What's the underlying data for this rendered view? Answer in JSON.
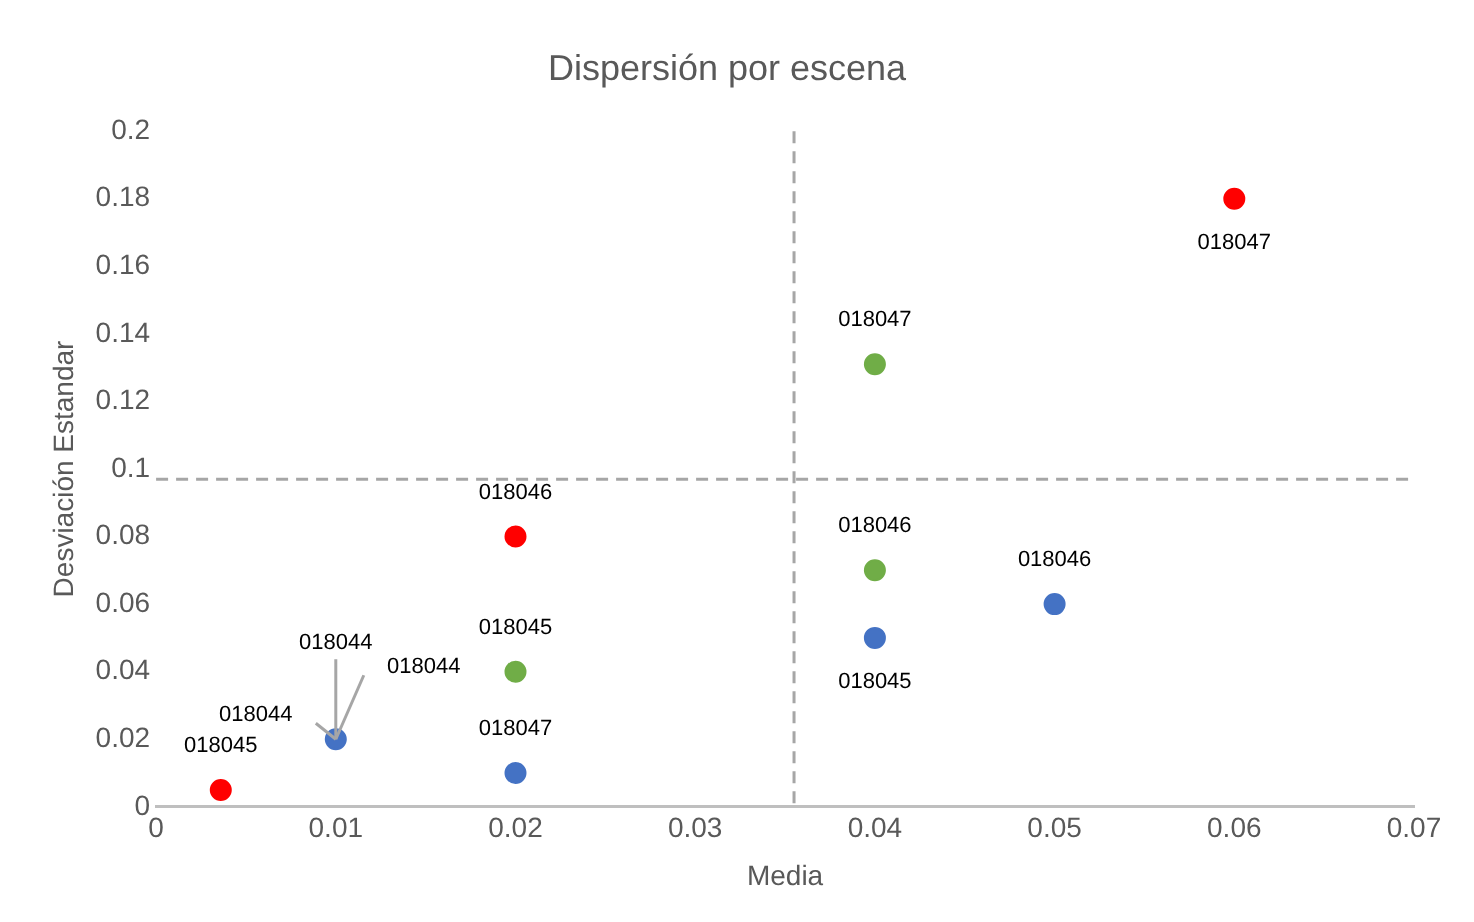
{
  "chart_data": {
    "type": "scatter",
    "title": "Dispersión por escena",
    "xlabel": "Media",
    "ylabel": "Desviación Estandar",
    "xlim": [
      0,
      0.07
    ],
    "xticks": [
      0,
      0.01,
      0.02,
      0.03,
      0.04,
      0.05,
      0.06,
      0.07
    ],
    "ylim": [
      0,
      0.2
    ],
    "yticks": [
      0,
      0.02,
      0.04,
      0.06,
      0.08,
      0.1,
      0.12,
      0.14,
      0.16,
      0.18,
      0.2
    ],
    "grid": false,
    "legend": false,
    "marker": "circle",
    "series": [
      {
        "color": "#4472c4",
        "x": [
          0.01,
          0.02,
          0.04,
          0.05
        ],
        "values": [
          0.02,
          0.01,
          0.05,
          0.06
        ]
      },
      {
        "color": "#70ad47",
        "x": [
          0.02,
          0.04,
          0.04
        ],
        "values": [
          0.04,
          0.07,
          0.131
        ]
      },
      {
        "color": "#ff0000",
        "x": [
          0.0036,
          0.02,
          0.06
        ],
        "values": [
          0.005,
          0.08,
          0.18
        ]
      }
    ],
    "annotations": [
      {
        "text": "018044",
        "x": 0.01,
        "y": 0.02
      },
      {
        "text": "018047",
        "x": 0.02,
        "y": 0.01
      },
      {
        "text": "018045",
        "x": 0.04,
        "y": 0.05
      },
      {
        "text": "018046",
        "x": 0.05,
        "y": 0.06
      },
      {
        "text": "018044",
        "x": 0.01,
        "y": 0.02
      },
      {
        "text": "018045",
        "x": 0.02,
        "y": 0.04
      },
      {
        "text": "018046",
        "x": 0.04,
        "y": 0.07
      },
      {
        "text": "018047",
        "x": 0.04,
        "y": 0.131
      },
      {
        "text": "018044",
        "x": 0.01,
        "y": 0.02
      },
      {
        "text": "018045",
        "x": 0.0036,
        "y": 0.005
      },
      {
        "text": "018046",
        "x": 0.02,
        "y": 0.08
      },
      {
        "text": "018047",
        "x": 0.06,
        "y": 0.18
      }
    ],
    "ref_lines": [
      {
        "axis": "x",
        "value": 0.0355,
        "color": "#a6a6a6",
        "line_style": "dashed"
      },
      {
        "axis": "y",
        "value": 0.097,
        "color": "#a6a6a6",
        "line_style": "dashed"
      }
    ]
  }
}
